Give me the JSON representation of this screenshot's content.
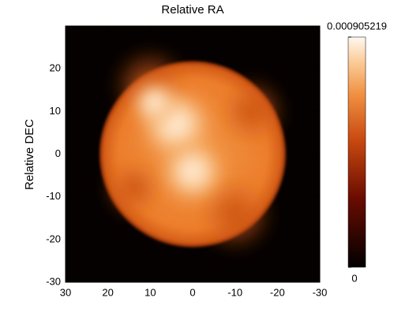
{
  "chart_data": {
    "type": "image",
    "title": "Relative RA",
    "ylabel": "Relative DEC",
    "xlim": [
      30,
      -30
    ],
    "xticks": [
      30,
      20,
      10,
      0,
      -10,
      -20,
      -30
    ],
    "ylim": [
      -30,
      30
    ],
    "yticks": [
      -30,
      -20,
      -10,
      0,
      10,
      20
    ],
    "colorbar": {
      "lim": [
        0,
        0.000905219
      ],
      "ticks": [
        0,
        0.000905219
      ]
    }
  }
}
